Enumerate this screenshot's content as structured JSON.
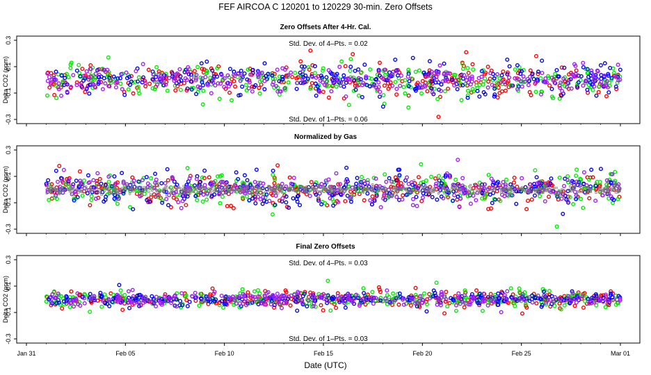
{
  "figure": {
    "title": "FEF   AIRCOA C   120201 to 120229   30-min. Zero Offsets",
    "xlabel": "Date (UTC)",
    "colors": {
      "red": "#ff0000",
      "green": "#00ee00",
      "blue": "#0000ff",
      "purple": "#a020f0",
      "gray": "#777777",
      "black": "#000000"
    }
  },
  "chart_data": [
    {
      "type": "scatter",
      "title": "Zero Offsets After 4-Hr. Cal.",
      "ylabel": "Delta CO2 (ppm)",
      "ylim": [
        -0.3,
        0.3
      ],
      "yticks": [
        -0.3,
        -0.1,
        0.1,
        0.3
      ],
      "xlim": [
        "2012-01-31",
        "2012-03-01"
      ],
      "annotation_top": "Std. Dev. of 4–Pts. =  0.02",
      "annotation_bottom": "Std. Dev. of 1–Pts. =  0.06",
      "x_range": [
        "2012-02-01",
        "2012-03-01"
      ],
      "series": [
        {
          "color": "red",
          "center": 0.0,
          "spread": 0.055
        },
        {
          "color": "green",
          "center": -0.01,
          "spread": 0.06
        },
        {
          "color": "blue",
          "center": 0.0,
          "spread": 0.06
        },
        {
          "color": "purple",
          "center": -0.005,
          "spread": 0.05
        }
      ]
    },
    {
      "type": "scatter",
      "title": "Normalized by Gas",
      "ylabel": "Delta CO2 (ppm)",
      "ylim": [
        -0.3,
        0.3
      ],
      "yticks": [
        -0.3,
        -0.1,
        0.1,
        0.3
      ],
      "xlim": [
        "2012-01-31",
        "2012-03-01"
      ],
      "annotation_top": "",
      "annotation_bottom": "",
      "x_range": [
        "2012-02-01",
        "2012-03-01"
      ],
      "series": [
        {
          "color": "red",
          "center": 0.0,
          "spread": 0.055
        },
        {
          "color": "green",
          "center": 0.0,
          "spread": 0.06
        },
        {
          "color": "blue",
          "center": 0.0,
          "spread": 0.06
        },
        {
          "color": "purple",
          "center": 0.0,
          "spread": 0.05
        },
        {
          "color": "gray",
          "center": 0.0,
          "spread": 0.015
        }
      ]
    },
    {
      "type": "scatter",
      "title": "Final Zero Offsets",
      "ylabel": "Delta CO2 (ppm)",
      "ylim": [
        -0.3,
        0.3
      ],
      "yticks": [
        -0.3,
        -0.1,
        0.1,
        0.3
      ],
      "xlim": [
        "2012-01-31",
        "2012-03-01"
      ],
      "annotation_top": "Std. Dev. of 4–Pts. =  0.03",
      "annotation_bottom": "Std. Dev. of 1–Pts. =  0.03",
      "x_range": [
        "2012-02-01",
        "2012-03-01"
      ],
      "series": [
        {
          "color": "red",
          "center": 0.0,
          "spread": 0.03
        },
        {
          "color": "green",
          "center": 0.0,
          "spread": 0.03
        },
        {
          "color": "blue",
          "center": 0.0,
          "spread": 0.025
        },
        {
          "color": "purple",
          "center": 0.0,
          "spread": 0.025
        }
      ]
    }
  ],
  "xaxis": {
    "tick_labels": [
      "Jan 31",
      "Feb 05",
      "Feb 10",
      "Feb 15",
      "Feb 20",
      "Feb 25",
      "Mar 01"
    ],
    "tick_dates": [
      "2012-01-31",
      "2012-02-05",
      "2012-02-10",
      "2012-02-15",
      "2012-02-20",
      "2012-02-25",
      "2012-03-01"
    ]
  }
}
